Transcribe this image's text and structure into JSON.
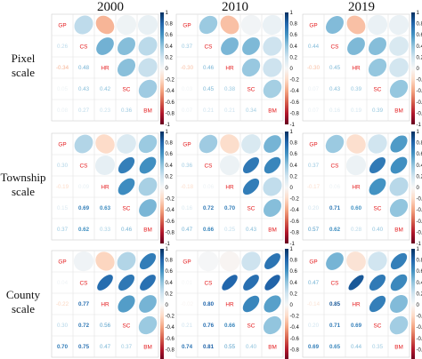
{
  "chart_data": {
    "type": "heatmap",
    "column_titles": [
      "2000",
      "2010",
      "2019"
    ],
    "row_labels": [
      [
        "Pixel",
        "scale"
      ],
      [
        "Township",
        "scale"
      ],
      [
        "County",
        "scale"
      ]
    ],
    "variables": [
      "GP",
      "CS",
      "HR",
      "SC",
      "BM"
    ],
    "colorbar_ticks": [
      "1",
      "0.8",
      "0.6",
      "0.4",
      "0.2",
      "0",
      "-0.2",
      "-0.4",
      "-0.6",
      "-0.8",
      "-1"
    ],
    "color_low": "#67001f",
    "color_mid": "#f7f7f7",
    "color_high": "#053061",
    "lower_triangle_labels": [
      [
        [
          "0.26",
          "-0.34",
          "0.05",
          "0.08",
          "0.48",
          "0.43",
          "0.27",
          "0.42",
          "0.23",
          "0.36"
        ],
        [
          "0.37",
          "-0.30",
          "0.03",
          "0.07",
          "0.46",
          "0.45",
          "0.21",
          "0.38",
          "0.21",
          "0.34"
        ],
        [
          "0.44",
          "-0.30",
          "0.07",
          "0.07",
          "0.45",
          "0.43",
          "0.16",
          "0.39",
          "0.19",
          "0.39"
        ]
      ],
      [
        [
          "0.30",
          "-0.19",
          "0.15",
          "0.37",
          "0.09",
          "0.69",
          "0.62",
          "0.63",
          "0.33",
          "0.46"
        ],
        [
          "0.36",
          "-0.18",
          "0.16",
          "0.47",
          "0.06",
          "0.72",
          "0.66",
          "0.70",
          "0.25",
          "0.43"
        ],
        [
          "0.37",
          "-0.17",
          "0.20",
          "0.57",
          "0.06",
          "0.71",
          "0.62",
          "0.60",
          "0.28",
          "0.40"
        ]
      ],
      [
        [
          "0.04",
          "-0.22",
          "0.30",
          "0.70",
          "0.77",
          "0.72",
          "0.75",
          "0.56",
          "0.47",
          "0.37"
        ],
        [
          "0.01",
          "-0.02",
          "0.21",
          "0.74",
          "0.80",
          "0.76",
          "0.81",
          "0.66",
          "0.55",
          "0.40"
        ],
        [
          "0.47",
          "-0.14",
          "0.20",
          "0.69",
          "0.85",
          "0.71",
          "0.65",
          "0.69",
          "0.44",
          "0.35"
        ]
      ]
    ],
    "values": [
      [
        [
          0.26,
          -0.34,
          0.05,
          0.08,
          0.48,
          0.43,
          0.27,
          0.42,
          0.23,
          0.36
        ],
        [
          0.37,
          -0.3,
          0.03,
          0.07,
          0.46,
          0.45,
          0.21,
          0.38,
          0.21,
          0.34
        ],
        [
          0.44,
          -0.3,
          0.07,
          0.07,
          0.45,
          0.43,
          0.16,
          0.39,
          0.19,
          0.39
        ]
      ],
      [
        [
          0.3,
          -0.19,
          0.15,
          0.37,
          0.09,
          0.69,
          0.62,
          0.63,
          0.33,
          0.46
        ],
        [
          0.36,
          -0.18,
          0.16,
          0.47,
          0.06,
          0.72,
          0.66,
          0.7,
          0.25,
          0.43
        ],
        [
          0.37,
          -0.17,
          0.2,
          0.57,
          0.06,
          0.71,
          0.62,
          0.6,
          0.28,
          0.4
        ]
      ],
      [
        [
          0.04,
          -0.22,
          0.3,
          0.7,
          0.77,
          0.72,
          0.75,
          0.56,
          0.47,
          0.37
        ],
        [
          0.01,
          -0.02,
          0.21,
          0.74,
          0.8,
          0.76,
          0.81,
          0.66,
          0.55,
          0.4
        ],
        [
          0.47,
          -0.14,
          0.2,
          0.69,
          0.85,
          0.71,
          0.65,
          0.69,
          0.44,
          0.35
        ]
      ]
    ]
  }
}
